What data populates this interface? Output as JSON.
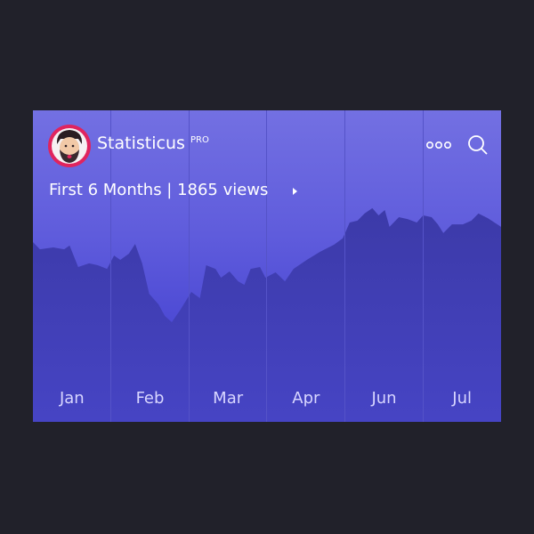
{
  "header": {
    "app_name": "Statisticus",
    "badge": "PRO",
    "subtitle": "First 6 Months | 1865 views"
  },
  "chart_data": {
    "type": "area",
    "x": [
      0,
      0.09,
      0.26,
      0.4,
      0.47,
      0.58,
      0.72,
      0.83,
      0.95,
      1.04,
      1.12,
      1.23,
      1.31,
      1.4,
      1.49,
      1.61,
      1.69,
      1.78,
      1.89,
      2.03,
      2.14,
      2.22,
      2.34,
      2.41,
      2.52,
      2.63,
      2.71,
      2.79,
      2.91,
      2.98,
      3.11,
      3.23,
      3.34,
      3.51,
      3.68,
      3.86,
      3.97,
      4.06,
      4.16,
      4.25,
      4.35,
      4.43,
      4.51,
      4.57,
      4.69,
      4.8,
      4.92,
      5,
      5.11,
      5.19,
      5.26,
      5.37,
      5.51,
      5.62,
      5.71,
      5.83,
      6
    ],
    "values": [
      57.7,
      55.4,
      56,
      55.4,
      56.6,
      49.7,
      50.9,
      50.3,
      49.1,
      53.4,
      52,
      54,
      57.1,
      50.9,
      41.1,
      37.7,
      34,
      32,
      36,
      41.7,
      39.7,
      50.3,
      49.1,
      46.3,
      48.3,
      45.1,
      44,
      49.1,
      49.7,
      46.3,
      48,
      45.1,
      49.1,
      52,
      54.6,
      56.9,
      58.9,
      64,
      64.6,
      66.9,
      68.6,
      66.3,
      68,
      62.6,
      65.7,
      65.1,
      64,
      66.3,
      65.7,
      63.4,
      60.6,
      63.4,
      63.4,
      64.6,
      66.9,
      65.4,
      62.6
    ],
    "color": "#3f3db4",
    "xlim": [
      0,
      6
    ],
    "ylim": [
      0,
      100
    ],
    "xticks": [
      {
        "value": 0.5,
        "label": "Jan"
      },
      {
        "value": 1.5,
        "label": "Feb"
      },
      {
        "value": 2.5,
        "label": "Mar"
      },
      {
        "value": 3.5,
        "label": "Apr"
      },
      {
        "value": 4.5,
        "label": "Jun"
      },
      {
        "value": 5.5,
        "label": "Jul"
      }
    ]
  }
}
